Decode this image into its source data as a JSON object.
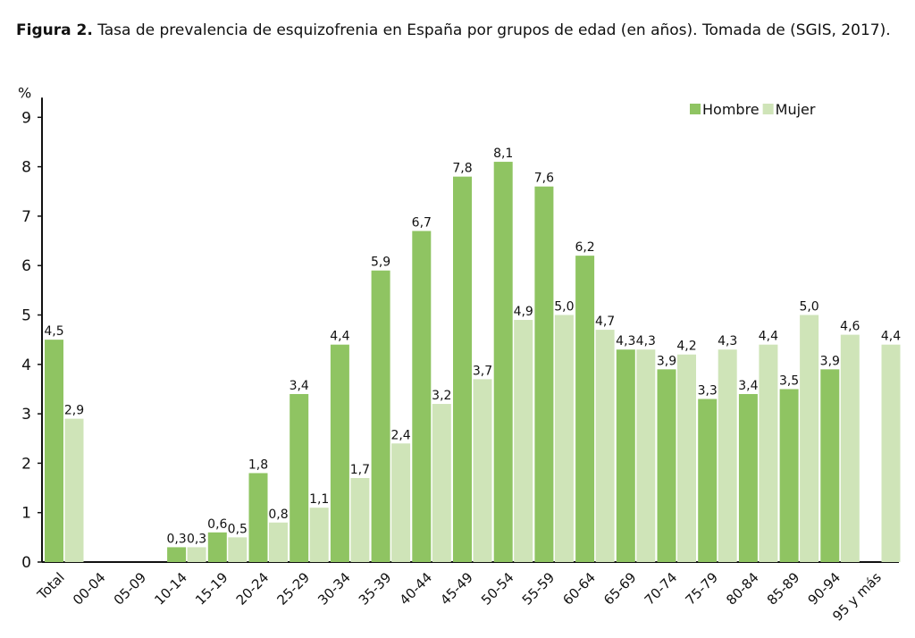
{
  "title": {
    "label": "Figura 2.",
    "text": "Tasa de prevalencia de esquizofrenia en España por grupos de edad (en años). Tomada de (SGIS, 2017)."
  },
  "chart_data": {
    "type": "bar",
    "title": "",
    "ylabel": "%",
    "xlabel": "",
    "ylim": [
      0,
      9
    ],
    "yticks": [
      0,
      1,
      2,
      3,
      4,
      5,
      6,
      7,
      8,
      9
    ],
    "grid": false,
    "legend_position": "top-right",
    "categories": [
      "Total",
      "00-04",
      "05-09",
      "10-14",
      "15-19",
      "20-24",
      "25-29",
      "30-34",
      "35-39",
      "40-44",
      "45-49",
      "50-54",
      "55-59",
      "60-64",
      "65-69",
      "70-74",
      "75-79",
      "80-84",
      "85-89",
      "90-94",
      "95 y más"
    ],
    "series": [
      {
        "name": "Hombre",
        "color": "#8fc462",
        "values": [
          4.5,
          null,
          null,
          0.3,
          0.6,
          1.8,
          3.4,
          4.4,
          5.9,
          6.7,
          7.8,
          8.1,
          7.6,
          6.2,
          4.3,
          3.9,
          3.3,
          3.4,
          3.5,
          3.9,
          null
        ],
        "labels": [
          "4,5",
          null,
          null,
          "0,3",
          "0,6",
          "1,8",
          "3,4",
          "4,4",
          "5,9",
          "6,7",
          "7,8",
          "8,1",
          "7,6",
          "6,2",
          "4,3",
          "3,9",
          "3,3",
          "3,4",
          "3,5",
          "3,9",
          null
        ]
      },
      {
        "name": "Mujer",
        "color": "#cfe4b8",
        "values": [
          2.9,
          null,
          null,
          0.3,
          0.5,
          0.8,
          1.1,
          1.7,
          2.4,
          3.2,
          3.7,
          4.9,
          5.0,
          4.7,
          4.3,
          4.2,
          4.3,
          4.4,
          5.0,
          4.6,
          4.4
        ],
        "labels": [
          "2,9",
          null,
          null,
          "0,3",
          "0,5",
          "0,8",
          "1,1",
          "1,7",
          "2,4",
          "3,2",
          "3,7",
          "4,9",
          "5,0",
          "4,7",
          "4,3",
          "4,2",
          "4,3",
          "4,4",
          "5,0",
          "4,6",
          "4,4"
        ]
      }
    ]
  }
}
